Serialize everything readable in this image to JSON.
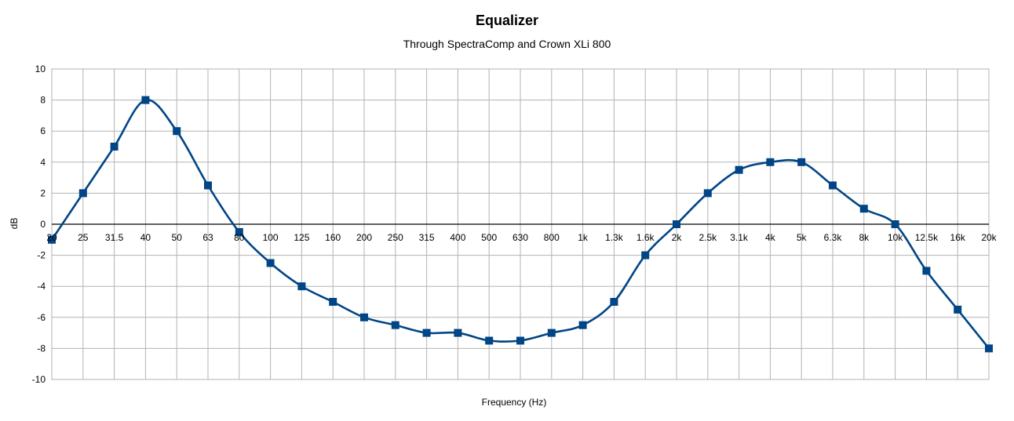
{
  "chart_data": {
    "type": "line",
    "title": "Equalizer",
    "subtitle": "Through SpectraComp and Crown XLi 800",
    "xlabel": "Frequency (Hz)",
    "ylabel": "dB",
    "categories": [
      "20",
      "25",
      "31.5",
      "40",
      "50",
      "63",
      "80",
      "100",
      "125",
      "160",
      "200",
      "250",
      "315",
      "400",
      "500",
      "630",
      "800",
      "1k",
      "1.3k",
      "1.6k",
      "2k",
      "2.5k",
      "3.1k",
      "4k",
      "5k",
      "6.3k",
      "8k",
      "10k",
      "12.5k",
      "16k",
      "20k"
    ],
    "series": [
      {
        "values": [
          -1,
          2,
          5,
          8,
          6,
          2.5,
          -0.5,
          -2.5,
          -4,
          -5,
          -6,
          -6.5,
          -7,
          -7,
          -7.5,
          -7.5,
          -7,
          -6.5,
          -5,
          -2,
          0,
          2,
          3.5,
          4,
          4,
          2.5,
          1,
          0,
          -3,
          -5.5,
          -8
        ],
        "color": "#004586"
      }
    ],
    "ylim": [
      -10,
      10
    ],
    "yticks": [
      -10,
      -8,
      -6,
      -4,
      -2,
      0,
      2,
      4,
      6,
      8,
      10
    ],
    "grid": true,
    "legend": "none",
    "marker": "square",
    "smooth": true
  }
}
